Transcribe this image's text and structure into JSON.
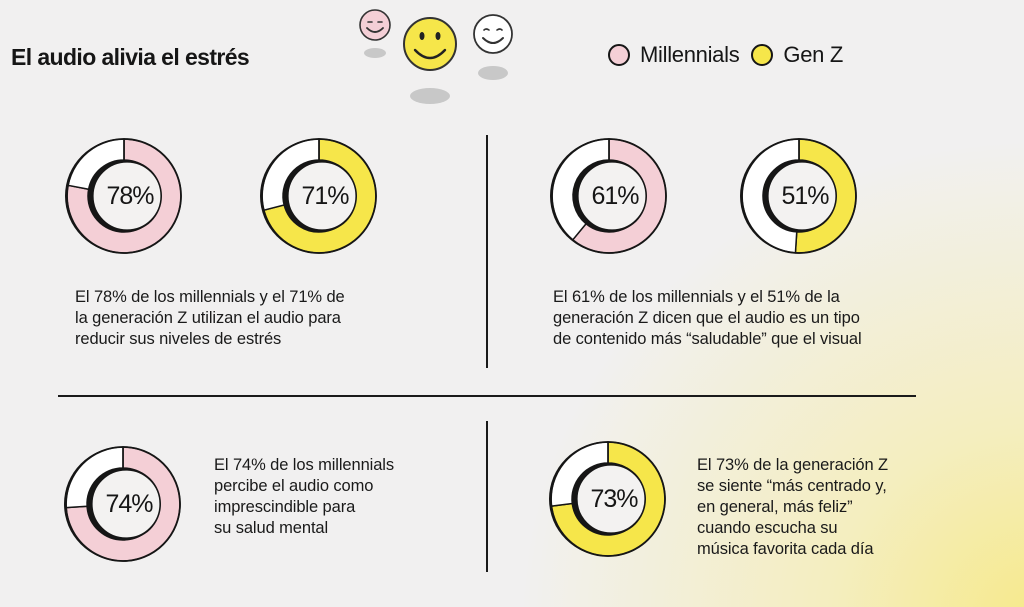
{
  "title": "El audio alivia el estrés",
  "legend": [
    {
      "label": "Millennials",
      "color": "#f4cfd6"
    },
    {
      "label": "Gen Z",
      "color": "#f6e64a"
    }
  ],
  "colors": {
    "millennials": "#f4cfd6",
    "genz": "#f6e64a",
    "remainder": "#ffffff",
    "stroke": "#161616"
  },
  "icons": [
    "smiley-pink-icon",
    "smiley-yellow-icon",
    "smiley-white-icon"
  ],
  "chart_data": {
    "type": "pie",
    "title": "El audio alivia el estrés",
    "subtype": "donut",
    "legend_position": "top-right",
    "series": [
      {
        "name": "Millennials",
        "color": "#f4cfd6"
      },
      {
        "name": "Gen Z",
        "color": "#f6e64a"
      }
    ],
    "donuts": [
      {
        "id": "stress-millennials",
        "series": "Millennials",
        "value": 78,
        "label": "78%"
      },
      {
        "id": "stress-genz",
        "series": "Gen Z",
        "value": 71,
        "label": "71%"
      },
      {
        "id": "healthier-millennials",
        "series": "Millennials",
        "value": 61,
        "label": "61%"
      },
      {
        "id": "healthier-genz",
        "series": "Gen Z",
        "value": 51,
        "label": "51%"
      },
      {
        "id": "mental-health-millennials",
        "series": "Millennials",
        "value": 74,
        "label": "74%"
      },
      {
        "id": "happier-genz",
        "series": "Gen Z",
        "value": 73,
        "label": "73%"
      }
    ]
  },
  "panels": {
    "stress": {
      "lines": [
        "El 78% de los millennials y el 71% de",
        "la generación Z utilizan el audio para",
        "reducir sus niveles de estrés"
      ]
    },
    "healthier": {
      "lines": [
        "El 61% de los millennials y el 51% de la",
        "generación Z dicen que el audio es un tipo",
        "de contenido más “saludable” que el visual"
      ]
    },
    "mental_health": {
      "lines": [
        "El 74% de los millennials",
        "percibe el audio como",
        "imprescindible para",
        "su salud mental"
      ]
    },
    "happier": {
      "lines": [
        "El 73% de la generación Z",
        "se siente “más centrado y,",
        "en general, más feliz”",
        "cuando escucha su",
        "música favorita cada día"
      ]
    }
  }
}
